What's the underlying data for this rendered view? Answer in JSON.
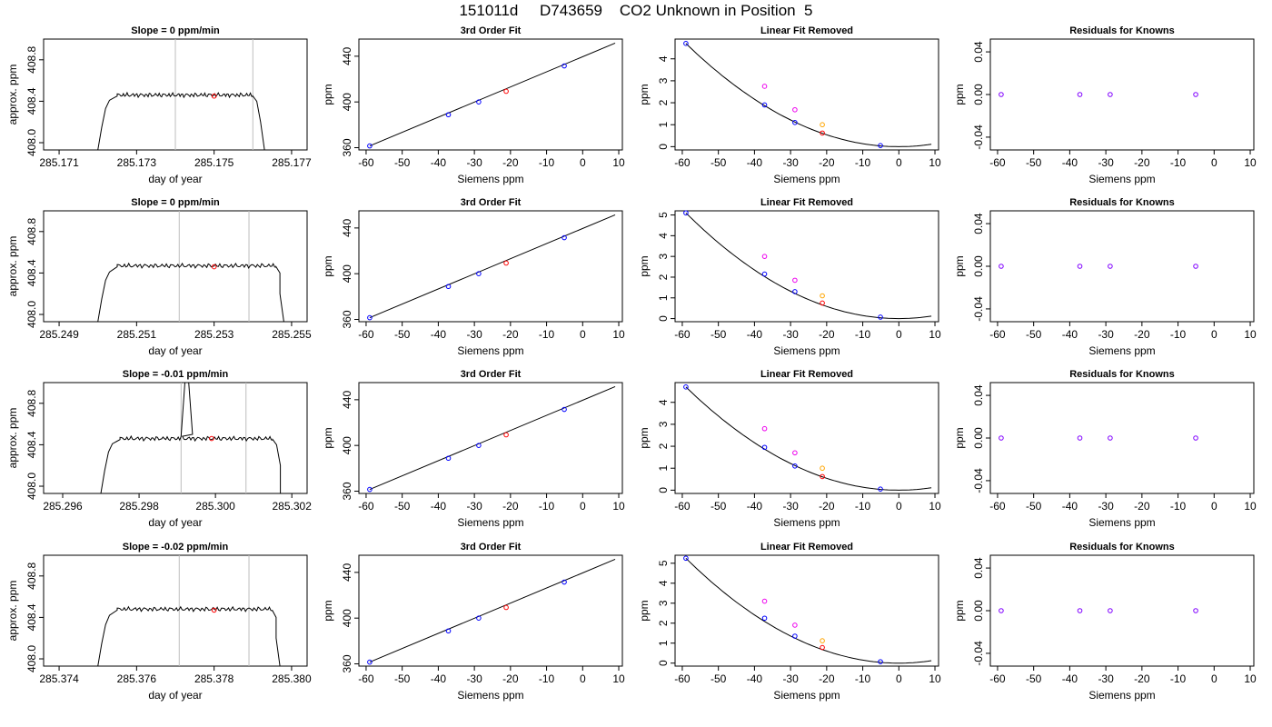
{
  "page_title": "151011d     D743659    CO2 Unknown in Position  5",
  "colors": {
    "known": "#0000ff",
    "unknown": "#ff0000",
    "magenta": "#ee00ee",
    "orange": "#ffa500",
    "purple": "#8000ff",
    "gridline": "#bebebe"
  },
  "fit_titles": {
    "cubic": "3rd Order Fit",
    "linear_removed": "Linear Fit Removed",
    "residuals": "Residuals for Knowns"
  },
  "axis_labels": {
    "approx": "approx. ppm",
    "day": "day of year",
    "ppm": "ppm",
    "siemens": "Siemens ppm"
  },
  "chart_data": [
    {
      "row": 1,
      "trace": {
        "type": "line",
        "title": "Slope =  0  ppm/min",
        "xlabel": "day of year",
        "ylabel": "approx. ppm",
        "xlim": [
          285.1706,
          285.1774
        ],
        "ylim": [
          407.93,
          409.0
        ],
        "xticks": [
          "285.171",
          "285.173",
          "285.175",
          "285.177"
        ],
        "xtick_values": [
          285.171,
          285.173,
          285.175,
          285.177
        ],
        "yticks": [
          "408.0",
          "408.4",
          "408.8"
        ],
        "ytick_values": [
          408.0,
          408.4,
          408.8
        ],
        "vlines": [
          285.174,
          285.176
        ],
        "ramp_up": [
          [
            285.172,
            407.93
          ],
          [
            285.1721,
            408.15
          ],
          [
            285.1722,
            408.33
          ],
          [
            285.1723,
            408.41
          ],
          [
            285.1725,
            408.45
          ]
        ],
        "plateau": {
          "start": 285.1725,
          "end": 285.176,
          "level": 408.46
        },
        "ramp_down": [
          [
            285.176,
            408.45
          ],
          [
            285.1761,
            408.4
          ],
          [
            285.1762,
            408.2
          ],
          [
            285.1763,
            407.93
          ]
        ],
        "marker": [
          285.175,
          408.45
        ]
      },
      "fit": {
        "type": "line",
        "title": "3rd Order Fit",
        "xlabel": "Siemens ppm",
        "ylabel": "ppm",
        "xlim": [
          -62,
          11
        ],
        "ylim": [
          358,
          455
        ],
        "xticks": [
          "-60",
          "-50",
          "-40",
          "-30",
          "-20",
          "-10",
          "0",
          "10"
        ],
        "yticks": [
          "360",
          "400",
          "440"
        ],
        "line": [
          [
            -59,
            361.5
          ],
          [
            9,
            451.5
          ]
        ],
        "knowns": [
          [
            -59,
            361.5
          ],
          [
            -37.2,
            388.8
          ],
          [
            -28.8,
            400.0
          ],
          [
            -5.1,
            431.5
          ]
        ],
        "unknown": [
          [
            -21.2,
            409.3
          ]
        ]
      },
      "linear_removed": {
        "type": "line",
        "title": "Linear Fit Removed",
        "xlabel": "Siemens ppm",
        "ylabel": "ppm",
        "xlim": [
          -62,
          11
        ],
        "ylim": [
          -0.15,
          4.9
        ],
        "xticks": [
          "-60",
          "-50",
          "-40",
          "-30",
          "-20",
          "-10",
          "0",
          "10"
        ],
        "yticks": [
          "0",
          "1",
          "2",
          "3",
          "4"
        ],
        "curve_peak": 4.7,
        "knowns": [
          [
            -59,
            4.7
          ],
          [
            -37.2,
            1.9
          ],
          [
            -28.8,
            1.1
          ],
          [
            -5.1,
            0.05
          ]
        ],
        "unknown": [
          [
            -21.2,
            0.62
          ]
        ],
        "magenta": [
          [
            -37.2,
            2.75
          ],
          [
            -28.8,
            1.68
          ]
        ],
        "orange": [
          [
            -21.2,
            1.0
          ]
        ]
      },
      "residuals": {
        "type": "scatter",
        "title": "Residuals for Knowns",
        "xlabel": "Siemens ppm",
        "ylabel": "ppm",
        "xlim": [
          -62,
          11
        ],
        "ylim": [
          -0.052,
          0.052
        ],
        "xticks": [
          "-60",
          "-50",
          "-40",
          "-30",
          "-20",
          "-10",
          "0",
          "10"
        ],
        "yticks": [
          "-0.04",
          "0.00",
          "0.04"
        ],
        "points": [
          [
            -59,
            0.0
          ],
          [
            -37.2,
            0.0
          ],
          [
            -28.8,
            0.0
          ],
          [
            -5.1,
            0.0
          ]
        ]
      }
    },
    {
      "row": 2,
      "trace": {
        "type": "line",
        "title": "Slope =  0  ppm/min",
        "xlabel": "day of year",
        "ylabel": "approx. ppm",
        "xlim": [
          285.2486,
          285.2554
        ],
        "ylim": [
          407.93,
          409.0
        ],
        "xticks": [
          "285.249",
          "285.251",
          "285.253",
          "285.255"
        ],
        "xtick_values": [
          285.249,
          285.251,
          285.253,
          285.255
        ],
        "yticks": [
          "408.0",
          "408.4",
          "408.8"
        ],
        "ytick_values": [
          408.0,
          408.4,
          408.8
        ],
        "vlines": [
          285.2521,
          285.2539
        ],
        "ramp_up": [
          [
            285.25,
            407.93
          ],
          [
            285.2501,
            408.15
          ],
          [
            285.2502,
            408.33
          ],
          [
            285.2503,
            408.41
          ],
          [
            285.2505,
            408.46
          ]
        ],
        "plateau": {
          "start": 285.2505,
          "end": 285.2546,
          "level": 408.47
        },
        "ramp_down": [
          [
            285.2546,
            408.46
          ],
          [
            285.2547,
            408.4
          ],
          [
            285.2547,
            408.2
          ],
          [
            285.2548,
            407.93
          ]
        ],
        "marker": [
          285.253,
          408.46
        ]
      },
      "fit": {
        "type": "line",
        "title": "3rd Order Fit",
        "xlabel": "Siemens ppm",
        "ylabel": "ppm",
        "xlim": [
          -62,
          11
        ],
        "ylim": [
          358,
          455
        ],
        "xticks": [
          "-60",
          "-50",
          "-40",
          "-30",
          "-20",
          "-10",
          "0",
          "10"
        ],
        "yticks": [
          "360",
          "400",
          "440"
        ],
        "line": [
          [
            -59,
            361.5
          ],
          [
            9,
            451.5
          ]
        ],
        "knowns": [
          [
            -59,
            361.5
          ],
          [
            -37.2,
            388.8
          ],
          [
            -28.8,
            400.0
          ],
          [
            -5.1,
            431.5
          ]
        ],
        "unknown": [
          [
            -21.2,
            409.3
          ]
        ]
      },
      "linear_removed": {
        "type": "line",
        "title": "Linear Fit Removed",
        "xlabel": "Siemens ppm",
        "ylabel": "ppm",
        "xlim": [
          -62,
          11
        ],
        "ylim": [
          -0.15,
          5.2
        ],
        "xticks": [
          "-60",
          "-50",
          "-40",
          "-30",
          "-20",
          "-10",
          "0",
          "10"
        ],
        "yticks": [
          "0",
          "1",
          "2",
          "3",
          "4",
          "5"
        ],
        "curve_peak": 5.1,
        "knowns": [
          [
            -59,
            5.1
          ],
          [
            -37.2,
            2.15
          ],
          [
            -28.8,
            1.3
          ],
          [
            -5.1,
            0.07
          ]
        ],
        "unknown": [
          [
            -21.2,
            0.75
          ]
        ],
        "magenta": [
          [
            -37.2,
            3.0
          ],
          [
            -28.8,
            1.85
          ]
        ],
        "orange": [
          [
            -21.2,
            1.1
          ]
        ]
      },
      "residuals": {
        "type": "scatter",
        "title": "Residuals for Knowns",
        "xlabel": "Siemens ppm",
        "ylabel": "ppm",
        "xlim": [
          -62,
          11
        ],
        "ylim": [
          -0.052,
          0.052
        ],
        "xticks": [
          "-60",
          "-50",
          "-40",
          "-30",
          "-20",
          "-10",
          "0",
          "10"
        ],
        "yticks": [
          "-0.04",
          "0.00",
          "0.04"
        ],
        "points": [
          [
            -59,
            0.0
          ],
          [
            -37.2,
            0.0
          ],
          [
            -28.8,
            0.0
          ],
          [
            -5.1,
            0.0
          ]
        ]
      }
    },
    {
      "row": 3,
      "trace": {
        "type": "line",
        "title": "Slope =  -0.01  ppm/min",
        "xlabel": "day of year",
        "ylabel": "approx. ppm",
        "xlim": [
          285.2955,
          285.3024
        ],
        "ylim": [
          407.93,
          409.0
        ],
        "xticks": [
          "285.296",
          "285.298",
          "285.300",
          "285.302"
        ],
        "xtick_values": [
          285.296,
          285.298,
          285.3,
          285.302
        ],
        "yticks": [
          "408.0",
          "408.4",
          "408.8"
        ],
        "ytick_values": [
          408.0,
          408.4,
          408.8
        ],
        "vlines": [
          285.2991,
          285.3008
        ],
        "ramp_up": [
          [
            285.297,
            407.93
          ],
          [
            285.2971,
            408.15
          ],
          [
            285.2972,
            408.33
          ],
          [
            285.2973,
            408.41
          ],
          [
            285.2975,
            408.45
          ]
        ],
        "plateau": {
          "start": 285.2975,
          "end": 285.3015,
          "level": 408.46
        },
        "spike": [
          [
            285.2991,
            408.48
          ],
          [
            285.2992,
            409.0
          ],
          [
            285.2993,
            409.0
          ],
          [
            285.2994,
            408.5
          ]
        ],
        "ramp_down": [
          [
            285.3015,
            408.45
          ],
          [
            285.3016,
            408.4
          ],
          [
            285.3017,
            408.2
          ],
          [
            285.3017,
            407.93
          ]
        ],
        "marker": [
          285.2999,
          408.46
        ]
      },
      "fit": {
        "type": "line",
        "title": "3rd Order Fit",
        "xlabel": "Siemens ppm",
        "ylabel": "ppm",
        "xlim": [
          -62,
          11
        ],
        "ylim": [
          358,
          455
        ],
        "xticks": [
          "-60",
          "-50",
          "-40",
          "-30",
          "-20",
          "-10",
          "0",
          "10"
        ],
        "yticks": [
          "360",
          "400",
          "440"
        ],
        "line": [
          [
            -59,
            361.5
          ],
          [
            9,
            451.5
          ]
        ],
        "knowns": [
          [
            -59,
            361.5
          ],
          [
            -37.2,
            388.8
          ],
          [
            -28.8,
            400.0
          ],
          [
            -5.1,
            431.5
          ]
        ],
        "unknown": [
          [
            -21.2,
            409.3
          ]
        ]
      },
      "linear_removed": {
        "type": "line",
        "title": "Linear Fit Removed",
        "xlabel": "Siemens ppm",
        "ylabel": "ppm",
        "xlim": [
          -62,
          11
        ],
        "ylim": [
          -0.15,
          4.9
        ],
        "xticks": [
          "-60",
          "-50",
          "-40",
          "-30",
          "-20",
          "-10",
          "0",
          "10"
        ],
        "yticks": [
          "0",
          "1",
          "2",
          "3",
          "4"
        ],
        "curve_peak": 4.7,
        "knowns": [
          [
            -59,
            4.7
          ],
          [
            -37.2,
            1.95
          ],
          [
            -28.8,
            1.1
          ],
          [
            -5.1,
            0.05
          ]
        ],
        "unknown": [
          [
            -21.2,
            0.62
          ]
        ],
        "magenta": [
          [
            -37.2,
            2.8
          ],
          [
            -28.8,
            1.7
          ]
        ],
        "orange": [
          [
            -21.2,
            1.0
          ]
        ]
      },
      "residuals": {
        "type": "scatter",
        "title": "Residuals for Knowns",
        "xlabel": "Siemens ppm",
        "ylabel": "ppm",
        "xlim": [
          -62,
          11
        ],
        "ylim": [
          -0.052,
          0.052
        ],
        "xticks": [
          "-60",
          "-50",
          "-40",
          "-30",
          "-20",
          "-10",
          "0",
          "10"
        ],
        "yticks": [
          "-0.04",
          "0.00",
          "0.04"
        ],
        "points": [
          [
            -59,
            0.0
          ],
          [
            -37.2,
            0.0
          ],
          [
            -28.8,
            0.0
          ],
          [
            -5.1,
            0.0
          ]
        ]
      }
    },
    {
      "row": 4,
      "trace": {
        "type": "line",
        "title": "Slope =  -0.02  ppm/min",
        "xlabel": "day of year",
        "ylabel": "approx. ppm",
        "xlim": [
          285.3736,
          285.3804
        ],
        "ylim": [
          407.93,
          409.0
        ],
        "xticks": [
          "285.374",
          "285.376",
          "285.378",
          "285.380"
        ],
        "xtick_values": [
          285.374,
          285.376,
          285.378,
          285.38
        ],
        "yticks": [
          "408.0",
          "408.4",
          "408.8"
        ],
        "ytick_values": [
          408.0,
          408.4,
          408.8
        ],
        "vlines": [
          285.3771,
          285.3789
        ],
        "ramp_up": [
          [
            285.375,
            407.93
          ],
          [
            285.3751,
            408.15
          ],
          [
            285.3752,
            408.33
          ],
          [
            285.3753,
            408.42
          ],
          [
            285.3755,
            408.47
          ]
        ],
        "plateau": {
          "start": 285.3755,
          "end": 285.3795,
          "level": 408.48
        },
        "ramp_down": [
          [
            285.3795,
            408.47
          ],
          [
            285.3796,
            408.4
          ],
          [
            285.3796,
            408.2
          ],
          [
            285.3797,
            407.93
          ]
        ],
        "marker": [
          285.378,
          408.47
        ]
      },
      "fit": {
        "type": "line",
        "title": "3rd Order Fit",
        "xlabel": "Siemens ppm",
        "ylabel": "ppm",
        "xlim": [
          -62,
          11
        ],
        "ylim": [
          358,
          455
        ],
        "xticks": [
          "-60",
          "-50",
          "-40",
          "-30",
          "-20",
          "-10",
          "0",
          "10"
        ],
        "yticks": [
          "360",
          "400",
          "440"
        ],
        "line": [
          [
            -59,
            361.5
          ],
          [
            9,
            451.5
          ]
        ],
        "knowns": [
          [
            -59,
            361.5
          ],
          [
            -37.2,
            388.8
          ],
          [
            -28.8,
            400.0
          ],
          [
            -5.1,
            431.5
          ]
        ],
        "unknown": [
          [
            -21.2,
            409.3
          ]
        ]
      },
      "linear_removed": {
        "type": "line",
        "title": "Linear Fit Removed",
        "xlabel": "Siemens ppm",
        "ylabel": "ppm",
        "xlim": [
          -62,
          11
        ],
        "ylim": [
          -0.15,
          5.4
        ],
        "xticks": [
          "-60",
          "-50",
          "-40",
          "-30",
          "-20",
          "-10",
          "0",
          "10"
        ],
        "yticks": [
          "0",
          "1",
          "2",
          "3",
          "4",
          "5"
        ],
        "curve_peak": 5.25,
        "knowns": [
          [
            -59,
            5.25
          ],
          [
            -37.2,
            2.25
          ],
          [
            -28.8,
            1.35
          ],
          [
            -5.1,
            0.07
          ]
        ],
        "unknown": [
          [
            -21.2,
            0.78
          ]
        ],
        "magenta": [
          [
            -37.2,
            3.1
          ],
          [
            -28.8,
            1.9
          ]
        ],
        "orange": [
          [
            -21.2,
            1.12
          ]
        ]
      },
      "residuals": {
        "type": "scatter",
        "title": "Residuals for Knowns",
        "xlabel": "Siemens ppm",
        "ylabel": "ppm",
        "xlim": [
          -62,
          11
        ],
        "ylim": [
          -0.052,
          0.052
        ],
        "xticks": [
          "-60",
          "-50",
          "-40",
          "-30",
          "-20",
          "-10",
          "0",
          "10"
        ],
        "yticks": [
          "-0.04",
          "0.00",
          "0.04"
        ],
        "points": [
          [
            -59,
            0.0
          ],
          [
            -37.2,
            0.0
          ],
          [
            -28.8,
            0.0
          ],
          [
            -5.1,
            0.0
          ]
        ]
      }
    }
  ]
}
